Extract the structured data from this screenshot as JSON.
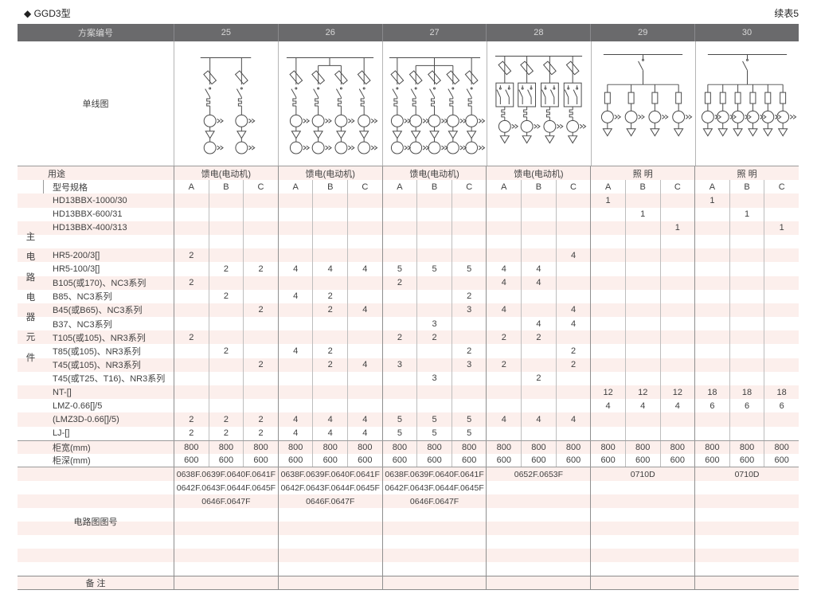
{
  "page": {
    "title": "◆ GGD3型",
    "continuation_note": "续表5"
  },
  "colors": {
    "header_bg": "#6a6a6c",
    "header_text": "#d8d8d8",
    "stripe_pink": "#fcefec",
    "line_major": "#8f8f8f",
    "line_minor": "#bdbdbd",
    "text": "#404040"
  },
  "table": {
    "scheme_header_label": "方案编号",
    "schemes": [
      "25",
      "26",
      "27",
      "28",
      "29",
      "30"
    ],
    "diagram_label": "单线图",
    "usage_label": "用途",
    "usages": [
      "馈电(电动机)",
      "馈电(电动机)",
      "馈电(电动机)",
      "馈电(电动机)",
      "照 明",
      "照 明"
    ],
    "spec_label": "型号规格",
    "subcolumns": [
      "A",
      "B",
      "C"
    ],
    "side_label": "主电路电器元件",
    "component_rows": [
      {
        "label": "HD13BBX-1000/30",
        "values": [
          "",
          "",
          "",
          "",
          "",
          "",
          "",
          "",
          "",
          "",
          "",
          "",
          "1",
          "",
          "",
          "1",
          "",
          ""
        ]
      },
      {
        "label": "HD13BBX-600/31",
        "values": [
          "",
          "",
          "",
          "",
          "",
          "",
          "",
          "",
          "",
          "",
          "",
          "",
          "",
          "1",
          "",
          "",
          "1",
          ""
        ]
      },
      {
        "label": "HD13BBX-400/313",
        "values": [
          "",
          "",
          "",
          "",
          "",
          "",
          "",
          "",
          "",
          "",
          "",
          "",
          "",
          "",
          "1",
          "",
          "",
          "1"
        ]
      },
      {
        "label": "",
        "values": [
          "",
          "",
          "",
          "",
          "",
          "",
          "",
          "",
          "",
          "",
          "",
          "",
          "",
          "",
          "",
          "",
          "",
          ""
        ]
      },
      {
        "label": "HR5-200/3[]",
        "values": [
          "2",
          "",
          "",
          "",
          "",
          "",
          "",
          "",
          "",
          "",
          "",
          "4",
          "",
          "",
          "",
          "",
          "",
          ""
        ]
      },
      {
        "label": "HR5-100/3[]",
        "values": [
          "",
          "2",
          "2",
          "4",
          "4",
          "4",
          "5",
          "5",
          "5",
          "4",
          "4",
          "",
          "",
          "",
          "",
          "",
          "",
          ""
        ]
      },
      {
        "label": "B105(或170)、NC3系列",
        "values": [
          "2",
          "",
          "",
          "",
          "",
          "",
          "2",
          "",
          "",
          "4",
          "4",
          "",
          "",
          "",
          "",
          "",
          "",
          ""
        ]
      },
      {
        "label": "B85、NC3系列",
        "values": [
          "",
          "2",
          "",
          "4",
          "2",
          "",
          "",
          "",
          "2",
          "",
          "",
          "",
          "",
          "",
          "",
          "",
          "",
          ""
        ]
      },
      {
        "label": "B45(或B65)、NC3系列",
        "values": [
          "",
          "",
          "2",
          "",
          "2",
          "4",
          "",
          "",
          "3",
          "4",
          "",
          "4",
          "",
          "",
          "",
          "",
          "",
          ""
        ]
      },
      {
        "label": "B37、NC3系列",
        "values": [
          "",
          "",
          "",
          "",
          "",
          "",
          "",
          "3",
          "",
          "",
          "4",
          "4",
          "",
          "",
          "",
          "",
          "",
          ""
        ]
      },
      {
        "label": "T105(或105)、NR3系列",
        "values": [
          "2",
          "",
          "",
          "",
          "",
          "",
          "2",
          "2",
          "",
          "2",
          "2",
          "",
          "",
          "",
          "",
          "",
          "",
          ""
        ]
      },
      {
        "label": "T85(或105)、NR3系列",
        "values": [
          "",
          "2",
          "",
          "4",
          "2",
          "",
          "",
          "",
          "2",
          "",
          "",
          "2",
          "",
          "",
          "",
          "",
          "",
          ""
        ]
      },
      {
        "label": "T45(或105)、NR3系列",
        "values": [
          "",
          "",
          "2",
          "",
          "2",
          "4",
          "3",
          "",
          "3",
          "2",
          "",
          "2",
          "",
          "",
          "",
          "",
          "",
          ""
        ]
      },
      {
        "label": "T45(或T25、T16)、NR3系列",
        "values": [
          "",
          "",
          "",
          "",
          "",
          "",
          "",
          "3",
          "",
          "",
          "2",
          "",
          "",
          "",
          "",
          "",
          "",
          ""
        ]
      },
      {
        "label": "NT-[]",
        "values": [
          "",
          "",
          "",
          "",
          "",
          "",
          "",
          "",
          "",
          "",
          "",
          "",
          "12",
          "12",
          "12",
          "18",
          "18",
          "18"
        ]
      },
      {
        "label": "LMZ-0.66[]/5",
        "values": [
          "",
          "",
          "",
          "",
          "",
          "",
          "",
          "",
          "",
          "",
          "",
          "",
          "4",
          "4",
          "4",
          "6",
          "6",
          "6"
        ]
      },
      {
        "label": "(LMZ3D-0.66[]/5)",
        "values": [
          "2",
          "2",
          "2",
          "4",
          "4",
          "4",
          "5",
          "5",
          "5",
          "4",
          "4",
          "4",
          "",
          "",
          "",
          "",
          "",
          ""
        ]
      },
      {
        "label": "LJ-[]",
        "values": [
          "2",
          "2",
          "2",
          "4",
          "4",
          "4",
          "5",
          "5",
          "5",
          "",
          "",
          "",
          "",
          "",
          "",
          "",
          "",
          ""
        ]
      }
    ],
    "width_row": {
      "label": "柜宽(mm)",
      "values": [
        "800",
        "800",
        "800",
        "800",
        "800",
        "800",
        "800",
        "800",
        "800",
        "800",
        "800",
        "800",
        "800",
        "800",
        "800",
        "800",
        "800",
        "800"
      ]
    },
    "depth_row": {
      "label": "柜深(mm)",
      "values": [
        "600",
        "600",
        "600",
        "600",
        "600",
        "600",
        "600",
        "600",
        "600",
        "600",
        "600",
        "600",
        "600",
        "600",
        "600",
        "600",
        "600",
        "600"
      ]
    },
    "circuit_label": "电路图图号",
    "circuit_rows": [
      [
        "0638F.0639F.0640F.0641F",
        "0638F.0639F.0640F.0641F",
        "0638F.0639F.0640F.0641F",
        "0652F.0653F",
        "0710D",
        "0710D"
      ],
      [
        "0642F.0643F.0644F.0645F",
        "0642F.0643F.0644F.0645F",
        "0642F.0643F.0644F.0645F",
        "",
        "",
        ""
      ],
      [
        "0646F.0647F",
        "0646F.0647F",
        "0646F.0647F",
        "",
        "",
        ""
      ],
      [
        "",
        "",
        "",
        "",
        "",
        ""
      ],
      [
        "",
        "",
        "",
        "",
        "",
        ""
      ],
      [
        "",
        "",
        "",
        "",
        "",
        ""
      ],
      [
        "",
        "",
        "",
        "",
        "",
        ""
      ],
      [
        "",
        "",
        "",
        "",
        "",
        ""
      ]
    ],
    "remark_label": "备 注"
  },
  "diagrams": [
    {
      "scheme": "25",
      "kind": "motor-feeder",
      "branches": 2
    },
    {
      "scheme": "26",
      "kind": "motor-feeder",
      "branches": 4
    },
    {
      "scheme": "27",
      "kind": "motor-feeder",
      "branches": 5
    },
    {
      "scheme": "28",
      "kind": "contactor-feeder",
      "branches": 4
    },
    {
      "scheme": "29",
      "kind": "lighting",
      "branches": 4
    },
    {
      "scheme": "30",
      "kind": "lighting",
      "branches": 6
    }
  ]
}
